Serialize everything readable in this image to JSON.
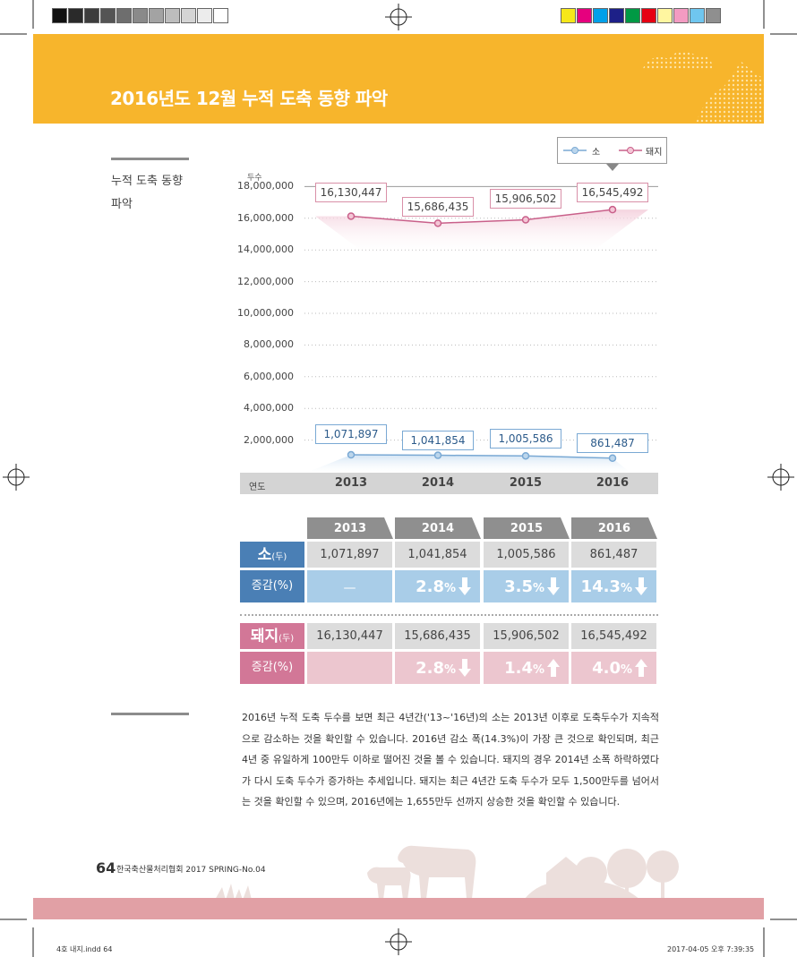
{
  "header": {
    "title": "2016년도 12월 누적 도축 동향 파악"
  },
  "side": {
    "label": "누적 도축 동향 파악"
  },
  "colors": {
    "cow": "#7aa9d4",
    "pig": "#c9608a",
    "header": "#f7b52c",
    "cow_row": "#4a7fb5",
    "pig_row": "#d27797",
    "cow_change_bg": "#a9cde8",
    "pig_change_bg": "#ecc6cf"
  },
  "swatch_colors": {
    "left": [
      "#111111",
      "#2a2a2a",
      "#3d3d3d",
      "#545454",
      "#6e6e6e",
      "#8a8a8a",
      "#a3a3a3",
      "#bdbdbd",
      "#d4d4d4",
      "#ececec",
      "#ffffff"
    ],
    "right": [
      "#f6e71a",
      "#e6007e",
      "#00a0e9",
      "#1d2088",
      "#009944",
      "#e60012",
      "#fff6a0",
      "#f39bc2",
      "#6fc6ef",
      "#8f8f8f"
    ]
  },
  "chart_data": {
    "type": "line",
    "ylabel": "두수",
    "xlabel": "연도",
    "categories": [
      "2013",
      "2014",
      "2015",
      "2016"
    ],
    "ylim": [
      0,
      18000000
    ],
    "yticks": [
      "18,000,000",
      "16,000,000",
      "14,000,000",
      "12,000,000",
      "10,000,000",
      "8,000,000",
      "6,000,000",
      "4,000,000",
      "2,000,000"
    ],
    "legend": [
      "소",
      "돼지"
    ],
    "legend_position": "top-right",
    "grid": true,
    "series": [
      {
        "name": "소",
        "values": [
          1071897,
          1041854,
          1005586,
          861487
        ],
        "labels": [
          "1,071,897",
          "1,041,854",
          "1,005,586",
          "861,487"
        ]
      },
      {
        "name": "돼지",
        "values": [
          16130447,
          15686435,
          15906502,
          16545492
        ],
        "labels": [
          "16,130,447",
          "15,686,435",
          "15,906,502",
          "16,545,492"
        ]
      }
    ]
  },
  "table": {
    "years": [
      "2013",
      "2014",
      "2015",
      "2016"
    ],
    "cow": {
      "label": "소",
      "unit": "(두)",
      "values": [
        "1,071,897",
        "1,041,854",
        "1,005,586",
        "861,487"
      ],
      "change_label": "증감(%)",
      "changes": [
        {
          "value": "—",
          "unit": "",
          "dir": "none"
        },
        {
          "value": "2.8",
          "unit": "%",
          "dir": "down"
        },
        {
          "value": "3.5",
          "unit": "%",
          "dir": "down"
        },
        {
          "value": "14.3",
          "unit": "%",
          "dir": "down"
        }
      ]
    },
    "pig": {
      "label": "돼지",
      "unit": "(두)",
      "values": [
        "16,130,447",
        "15,686,435",
        "15,906,502",
        "16,545,492"
      ],
      "change_label": "증감(%)",
      "changes": [
        {
          "value": "",
          "unit": "",
          "dir": "none"
        },
        {
          "value": "2.8",
          "unit": "%",
          "dir": "down"
        },
        {
          "value": "1.4",
          "unit": "%",
          "dir": "up"
        },
        {
          "value": "4.0",
          "unit": "%",
          "dir": "up"
        }
      ]
    }
  },
  "body_text": "2016년 누적 도축 두수를 보면 최근 4년간('13~'16년)의 소는 2013년 이후로 도축두수가 지속적으로 감소하는 것을 확인할 수 있습니다. 2016년 감소 폭(14.3%)이 가장 큰 것으로 확인되며, 최근 4년 중 유일하게 100만두 이하로 떨어진 것을 볼 수 있습니다. 돼지의 경우 2014년 소폭 하락하였다가 다시 도축 두수가 증가하는 추세입니다. 돼지는 최근 4년간 도축 두수가 모두 1,500만두를 넘어서는 것을 확인할 수 있으며, 2016년에는 1,655만두 선까지 상승한 것을 확인할 수 있습니다.",
  "footer": {
    "page": "64",
    "publication": "한국축산물처리협회 2017 SPRING-No.04"
  },
  "slug": {
    "file": "4호 내지.indd   64",
    "timestamp": "2017-04-05   오후 7:39:35"
  }
}
